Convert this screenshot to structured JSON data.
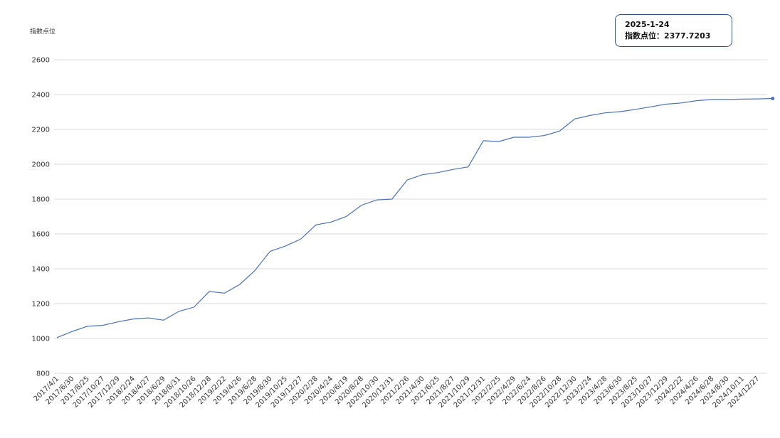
{
  "chart_data": {
    "type": "line",
    "y_label": "指数点位",
    "categories": [
      "2017/4/1",
      "2017/6/30",
      "2017/8/25",
      "2017/10/27",
      "2017/12/29",
      "2018/2/24",
      "2018/4/27",
      "2018/6/29",
      "2018/8/31",
      "2018/10/26",
      "2018/12/28",
      "2019/2/22",
      "2019/4/26",
      "2019/6/28",
      "2019/8/30",
      "2019/10/25",
      "2019/12/27",
      "2020/2/28",
      "2020/4/24",
      "2020/6/19",
      "2020/8/28",
      "2020/10/30",
      "2020/12/31",
      "2021/2/26",
      "2021/4/30",
      "2021/6/25",
      "2021/8/27",
      "2021/10/29",
      "2021/12/31",
      "2022/2/25",
      "2022/4/29",
      "2022/6/24",
      "2022/8/26",
      "2022/10/28",
      "2022/12/30",
      "2023/2/24",
      "2023/4/28",
      "2023/6/30",
      "2023/8/25",
      "2023/10/27",
      "2023/12/29",
      "2024/2/22",
      "2024/4/26",
      "2024/6/28",
      "2024/8/30",
      "2024/10/11",
      "2024/12/27",
      null
    ],
    "values": [
      1005,
      1040,
      1070,
      1075,
      1095,
      1112,
      1118,
      1105,
      1155,
      1180,
      1270,
      1260,
      1310,
      1390,
      1500,
      1530,
      1570,
      1652,
      1668,
      1700,
      1765,
      1795,
      1800,
      1910,
      1940,
      1952,
      1970,
      1985,
      2135,
      2130,
      2155,
      2155,
      2165,
      2190,
      2260,
      2280,
      2295,
      2302,
      2315,
      2330,
      2345,
      2352,
      2365,
      2372,
      2372,
      2374,
      2375,
      2377.7203
    ],
    "color": "#4a72b8",
    "ylim": [
      800,
      2600
    ],
    "yticks": [
      800,
      1000,
      1200,
      1400,
      1600,
      1800,
      2000,
      2200,
      2400,
      2600
    ],
    "grid": true,
    "tooltip": {
      "date": "2025-1-24",
      "label": "指数点位："
    }
  }
}
